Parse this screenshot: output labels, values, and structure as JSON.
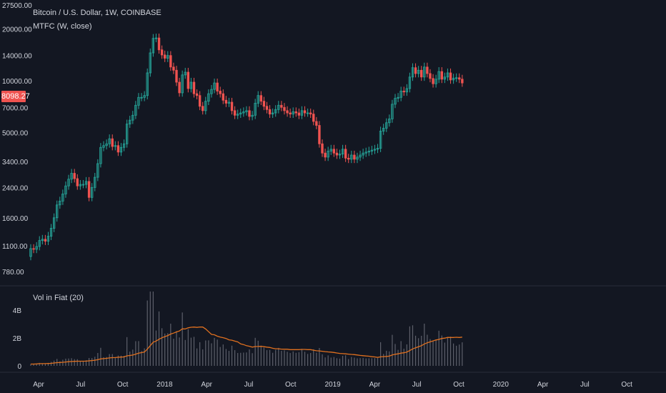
{
  "chart_data": {
    "type": "candlestick",
    "title": "Bitcoin / U.S. Dollar, 1W, COINBASE",
    "indicator_label": "MTFC (W, close)",
    "log_scale": true,
    "price_axis_labels": [
      "27500.00",
      "20000.00",
      "14000.00",
      "10000.00",
      "7000.00",
      "5000.00",
      "3400.00",
      "2400.00",
      "1600.00",
      "1100.00",
      "780.00"
    ],
    "price_axis_values": [
      27500,
      20000,
      14000,
      10000,
      7000,
      5000,
      3400,
      2400,
      1600,
      1100,
      780
    ],
    "last_price": "8098.27",
    "time_axis_labels": [
      "Apr",
      "Jul",
      "Oct",
      "2018",
      "Apr",
      "Jul",
      "Oct",
      "2019",
      "Apr",
      "Jul",
      "Oct",
      "2020",
      "Apr",
      "Jul",
      "Oct"
    ],
    "closes": [
      1060,
      1050,
      1090,
      1180,
      1200,
      1170,
      1250,
      1390,
      1600,
      1900,
      2000,
      2200,
      2450,
      2680,
      2900,
      2700,
      2450,
      2500,
      2500,
      2600,
      2100,
      2400,
      2750,
      3300,
      4100,
      4200,
      4300,
      4600,
      4150,
      4200,
      3850,
      4100,
      4300,
      5600,
      5900,
      6300,
      7200,
      8000,
      8000,
      8200,
      11100,
      14500,
      17600,
      17700,
      15100,
      14100,
      13500,
      14000,
      12000,
      11500,
      9800,
      8500,
      10800,
      11200,
      9000,
      9800,
      8400,
      8200,
      7100,
      6700,
      7600,
      8400,
      8900,
      9700,
      8700,
      8400,
      7700,
      7400,
      7500,
      6700,
      6300,
      6400,
      6500,
      6600,
      6700,
      6200,
      6300,
      7400,
      8200,
      7600,
      7100,
      6800,
      6400,
      6500,
      6800,
      7200,
      7000,
      6700,
      6500,
      6400,
      6600,
      6500,
      6300,
      6700,
      6500,
      6500,
      6400,
      5800,
      5500,
      4300,
      3800,
      3600,
      3900,
      4000,
      3800,
      3700,
      3750,
      4000,
      3550,
      3500,
      3700,
      3500,
      3600,
      3700,
      3800,
      3850,
      3900,
      3950,
      4000,
      4050,
      5100,
      5300,
      5700,
      6000,
      7300,
      7900,
      8000,
      8700,
      8600,
      9000,
      10500,
      11900,
      11000,
      11500,
      10500,
      12000,
      11000,
      10300,
      9600,
      10200,
      11300,
      10200,
      10500,
      11100,
      10100,
      10350,
      10400,
      10200,
      9700
    ],
    "wick_high_factor": 1.06,
    "wick_low_factor": 0.95,
    "volume_panel": {
      "label": "Vol in Fiat (20)",
      "axis_labels": [
        "4B",
        "2B",
        "0"
      ],
      "axis_values": [
        4000000000,
        2000000000,
        0
      ],
      "ma_color": "#e0701f"
    },
    "colors": {
      "up": "#26a69a",
      "down": "#ef5350",
      "background": "#131722",
      "text": "#d1d4dc"
    },
    "grid": false,
    "legend": "top-left"
  }
}
